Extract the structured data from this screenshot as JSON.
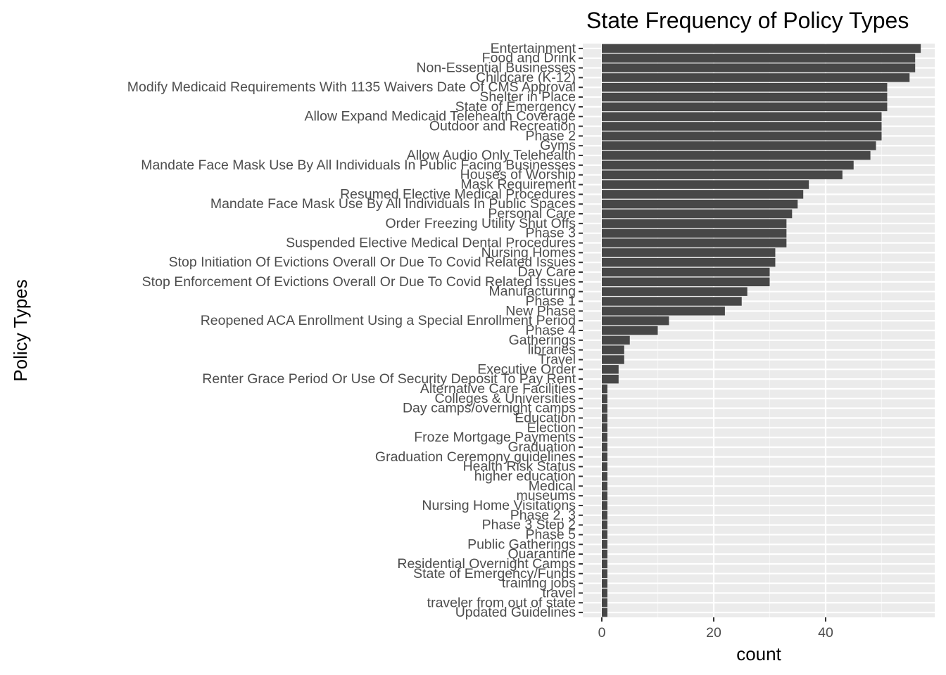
{
  "chart_data": {
    "type": "bar",
    "orientation": "horizontal",
    "title": "State Frequency of Policy Types",
    "xlabel": "count",
    "ylabel": "Policy Types",
    "xlim": [
      0,
      59.5
    ],
    "xticks": [
      0,
      20,
      40
    ],
    "grid": true,
    "colors": {
      "bar": "#474747",
      "panel": "#ebebeb",
      "grid_major": "#ffffff",
      "grid_minor": "#f5f5f5"
    },
    "categories": [
      "Entertainment",
      "Food and Drink",
      "Non-Essential Businesses",
      "Childcare (K-12)",
      "Modify Medicaid Requirements With 1135 Waivers Date Of CMS Approval",
      "Shelter in Place",
      "State of Emergency",
      "Allow Expand Medicaid Telehealth Coverage",
      "Outdoor and Recreation",
      "Phase 2",
      "Gyms",
      "Allow Audio Only Telehealth",
      "Mandate Face Mask Use By All Individuals In Public Facing Businesses",
      "Houses of Worship",
      "Mask Requirement",
      "Resumed Elective Medical Procedures",
      "Mandate Face Mask Use By All Individuals In Public Spaces",
      "Personal Care",
      "Order Freezing Utility Shut Offs",
      "Phase 3",
      "Suspended Elective Medical Dental Procedures",
      "Nursing Homes",
      "Stop Initiation Of Evictions Overall Or Due To Covid Related Issues",
      "Day Care",
      "Stop Enforcement Of Evictions Overall Or Due To Covid Related Issues",
      "Manufacturing",
      "Phase 1",
      "New Phase",
      "Reopened ACA Enrollment Using a Special Enrollment Period",
      "Phase 4",
      "Gatherings",
      "libraries",
      "Travel",
      "Executive Order",
      "Renter Grace Period Or Use Of Security Deposit To Pay Rent",
      "Alternative Care Facilities",
      "Colleges & Universities",
      "Day camps/overnight camps",
      "Education",
      "Election",
      "Froze Mortgage Payments",
      "Graduation",
      "Graduation Ceremony guidelines",
      "Health Risk Status",
      "higher education",
      "Medical",
      "museums",
      "Nursing Home Visitations",
      "Phase 2, 3",
      "Phase 3 Step 2",
      "Phase 5",
      "Public Gatherings",
      "Quarantine",
      "Residential Overnight Camps",
      "State of Emergency/Funds",
      "training jobs",
      "travel",
      "traveler from out of state",
      "Updated Guidelines"
    ],
    "values": [
      57,
      56,
      56,
      55,
      51,
      51,
      51,
      50,
      50,
      50,
      49,
      48,
      45,
      43,
      37,
      36,
      35,
      34,
      33,
      33,
      33,
      31,
      31,
      30,
      30,
      26,
      25,
      22,
      12,
      10,
      5,
      4,
      4,
      3,
      3,
      1,
      1,
      1,
      1,
      1,
      1,
      1,
      1,
      1,
      1,
      1,
      1,
      1,
      1,
      1,
      1,
      1,
      1,
      1,
      1,
      1,
      1,
      1,
      1
    ]
  }
}
